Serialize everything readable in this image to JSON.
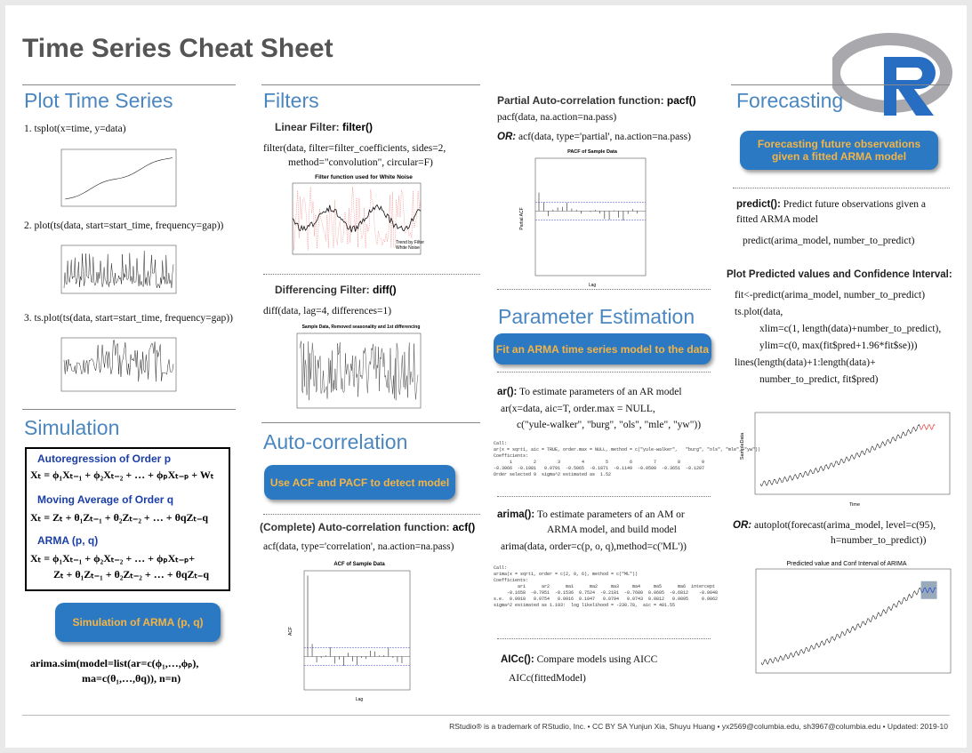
{
  "header": {
    "title": "Time Series Cheat Sheet"
  },
  "plot_time_series": {
    "title": "Plot Time Series",
    "items": [
      "1. tsplot(x=time, y=data)",
      "2. plot(ts(data, start=start_time, frequency=gap))",
      "3. ts.plot(ts(data, start=start_time, frequency=gap))"
    ]
  },
  "simulation": {
    "title": "Simulation",
    "ar_heading": "Autoregression of Order p",
    "ar_formula": "Xₜ = ϕ₁Xₜ₋₁ + ϕ₂Xₜ₋₂ + … + ϕₚXₜ₋ₚ + Wₜ",
    "ma_heading": "Moving Average of Order q",
    "ma_formula": "Xₜ = Zₜ + θ₁Zₜ₋₁ + θ₂Zₜ₋₂ + … + θqZₜ₋q",
    "arma_heading": "ARMA (p, q)",
    "arma_formula": [
      "Xₜ = ϕ₁Xₜ₋₁ + ϕ₂Xₜ₋₂ + … + ϕₚXₜ₋ₚ+",
      "Zₜ + θ₁Zₜ₋₁ + θ₂Zₜ₋₂ + … + θqZₜ₋q"
    ],
    "callout": "Simulation of ARMA (p, q)",
    "code": [
      "arima.sim(model=list(ar=c(ϕ₁,…,ϕₚ),",
      "ma=c(θ₁,…,θq)), n=n)"
    ]
  },
  "filters": {
    "title": "Filters",
    "linear_label": "Linear Filter: ",
    "linear_fn": "filter()",
    "linear_code": [
      "filter(data, filter=filter_coefficients, sides=2,",
      "method=\"convolution\",  circular=F)"
    ],
    "linear_plot_title": "Filter function used for White Noise",
    "linear_plot_legend": [
      "Trend by Filter",
      "White Noise"
    ],
    "diff_label": "Differencing Filter: ",
    "diff_fn": "diff()",
    "diff_code": "diff(data, lag=4, differences=1)",
    "diff_plot_title": "Sample Data, Removed seasonality and 1st differencing"
  },
  "autocorrelation": {
    "title": "Auto-correlation",
    "callout": "Use ACF and PACF to detect model",
    "acf_label": "(Complete) Auto-correlation function: ",
    "acf_fn": "acf()",
    "acf_code": "acf(data, type='correlation', na.action=na.pass)",
    "acf_plot_title": "ACF of Sample Data",
    "acf_x_label": "Lag",
    "acf_y_label": "ACF"
  },
  "pacf": {
    "label": "Partial Auto-correlation function: ",
    "fn": "pacf()",
    "code": "pacf(data, na.action=na.pass)",
    "or": "OR:",
    "alt_code": "acf(data, type='partial', na.action=na.pass)",
    "plot_title": "PACF of Sample Data",
    "x_label": "Lag",
    "y_label": "Partial ACF"
  },
  "parameter_estimation": {
    "title": "Parameter Estimation",
    "callout": "Fit an ARMA time series model to the data",
    "ar_fn": "ar():",
    "ar_desc": " To estimate parameters of an AR model",
    "ar_code": [
      "ar(x=data, aic=T, order.max = NULL,",
      "c(\"yule-walker\", \"burg\", \"ols\", \"mle\", \"yw\"))"
    ],
    "ar_output": [
      "Call:",
      "ar(x = sqrt1, aic = TRUE, order.max = NULL, method = c(\"yule-walker\",   \"burg\", \"ols\", \"mle\", \"yw\"))",
      "Coefficients:",
      "      1        2        3        4        5        6        7        8        9",
      "-0.3066  -0.1981   0.0791  -0.5065  -0.1871  -0.1149  -0.0500  -0.3651  -0.1207",
      "Order selected 9  sigma^2 estimated as  1.52"
    ],
    "arima_fn": "arima():",
    "arima_desc": [
      " To estimate parameters of an AM or",
      "ARMA model, and build model"
    ],
    "arima_code": "arima(data, order=c(p, o, q),method=c('ML'))",
    "arima_output": [
      "Call:",
      "arima(x = sqrt1, order = c(2, 0, 6), method = c(\"ML\"))",
      "Coefficients:",
      "         ar1      ar2      ma1      ma2     ma3     ma4     ma5      ma6  intercept",
      "     -0.1658  -0.7951  -0.1536  0.7524  -0.2181  -0.7680  0.0605  -0.6812    -0.0048",
      "s.e.  0.0918   0.0754   0.0916  0.1047   0.0794   0.0743  0.0812   0.0895     0.0062",
      "sigma^2 estimated as 1.193:  log likelihood = -230.78,  aic = 481.55"
    ],
    "aicc_fn": "AICc():",
    "aicc_desc": " Compare models using AICC",
    "aicc_code": "AICc(fittedModel)"
  },
  "forecasting": {
    "title": "Forecasting",
    "callout": [
      "Forecasting future observations",
      "given a fitted ARMA model"
    ],
    "predict_fn": "predict():",
    "predict_desc": [
      " Predict future observations given a",
      "fitted ARMA model"
    ],
    "predict_code": "predict(arima_model, number_to_predict)",
    "plot_heading": "Plot Predicted values and Confidence Interval:",
    "plot_code": [
      "fit<-predict(arima_model, number_to_predict)",
      "ts.plot(data,",
      "xlim=c(1, length(data)+number_to_predict),",
      "ylim=c(0, max(fit$pred+1.96*fit$se)))",
      "lines(length(data)+1:length(data)+",
      "number_to_predict, fit$pred)"
    ],
    "plot_x_label": "Time",
    "plot_y_label": "SampleData",
    "or": "OR:",
    "auto_code": [
      " autoplot(forecast(arima_model, level=c(95),",
      "h=number_to_predict))"
    ],
    "auto_plot_title": "Predicted value and Conf Interval of ARIMA"
  },
  "footer": "RStudio® is a trademark of RStudio, Inc. • CC BY SA  Yunjun Xia, Shuyu Huang • yx2569@columbia.edu, sh3967@columbia.edu • Updated: 2019-10"
}
